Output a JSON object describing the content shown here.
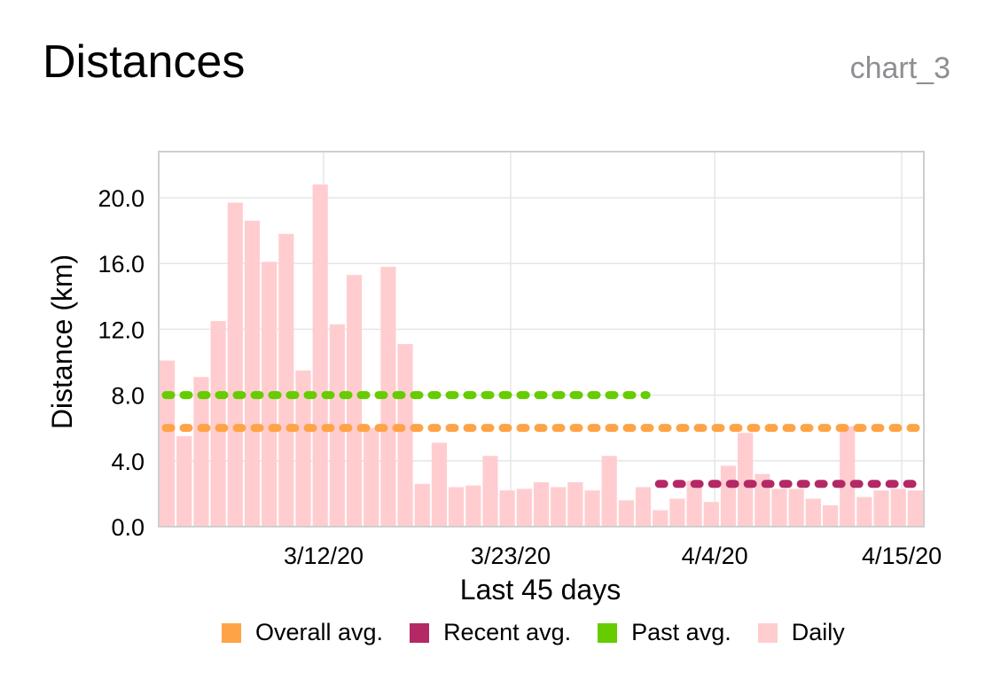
{
  "header": {
    "title": "Distances",
    "chart_id": "chart_3"
  },
  "colors": {
    "daily": "#ffcdd0",
    "overall_avg": "#ffa347",
    "recent_avg": "#b42866",
    "past_avg": "#66cc00",
    "grid": "#e6e6e6",
    "frame": "#cfcfcf"
  },
  "legend": [
    {
      "label": "Overall avg.",
      "color": "#ffa347"
    },
    {
      "label": "Recent avg.",
      "color": "#b42866"
    },
    {
      "label": "Past avg.",
      "color": "#66cc00"
    },
    {
      "label": "Daily",
      "color": "#ffcdd0"
    }
  ],
  "chart_data": {
    "type": "bar",
    "xlabel": "Last 45 days",
    "ylabel": "Distance (km)",
    "ylim": [
      0,
      22.8
    ],
    "yticks": [
      "0.0",
      "4.0",
      "8.0",
      "12.0",
      "16.0",
      "20.0"
    ],
    "ytick_values": [
      0,
      4,
      8,
      12,
      16,
      20
    ],
    "xticks": [
      "3/12/20",
      "3/23/20",
      "4/4/20",
      "4/15/20"
    ],
    "xtick_positions": [
      9.7,
      20.7,
      32.7,
      43.7
    ],
    "grid": true,
    "legend_position": "bottom",
    "series": [
      {
        "name": "Daily",
        "type": "bar",
        "color": "#ffcdd0",
        "values": [
          10.1,
          5.5,
          9.1,
          12.5,
          19.7,
          18.6,
          16.1,
          17.8,
          9.5,
          20.8,
          12.3,
          15.3,
          6.0,
          15.8,
          11.1,
          2.6,
          5.1,
          2.4,
          2.5,
          4.3,
          2.2,
          2.3,
          2.7,
          2.4,
          2.7,
          2.2,
          4.3,
          1.6,
          2.4,
          1.0,
          1.7,
          2.8,
          1.5,
          3.7,
          5.7,
          3.2,
          2.3,
          2.3,
          1.7,
          1.3,
          6.1,
          1.8,
          2.2,
          2.3,
          2.2
        ]
      },
      {
        "name": "Overall avg.",
        "type": "line",
        "style": "dotted",
        "color": "#ffa347",
        "value": 6.0,
        "x_range": [
          0,
          45
        ]
      },
      {
        "name": "Recent avg.",
        "type": "line",
        "style": "dotted",
        "color": "#b42866",
        "value": 2.6,
        "x_range": [
          29,
          45
        ]
      },
      {
        "name": "Past avg.",
        "type": "line",
        "style": "dotted",
        "color": "#66cc00",
        "value": 8.0,
        "x_range": [
          0,
          29
        ]
      }
    ]
  }
}
